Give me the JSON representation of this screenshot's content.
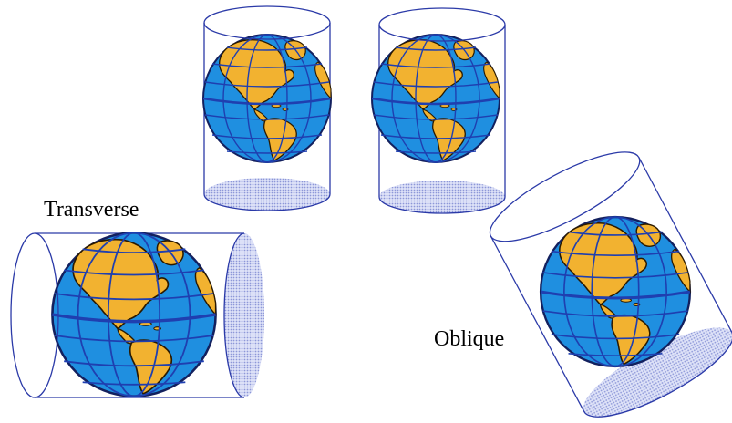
{
  "labels": {
    "transverse": "Transverse",
    "oblique": "Oblique"
  },
  "colors": {
    "ocean": "#1f8fe0",
    "land": "#f2b230",
    "grid": "#1f3fb0",
    "outline": "#2b3aa8",
    "shadow": "#c9cff2",
    "background": "#ffffff"
  },
  "icons": [
    "globe-icon",
    "cylinder-icon"
  ]
}
